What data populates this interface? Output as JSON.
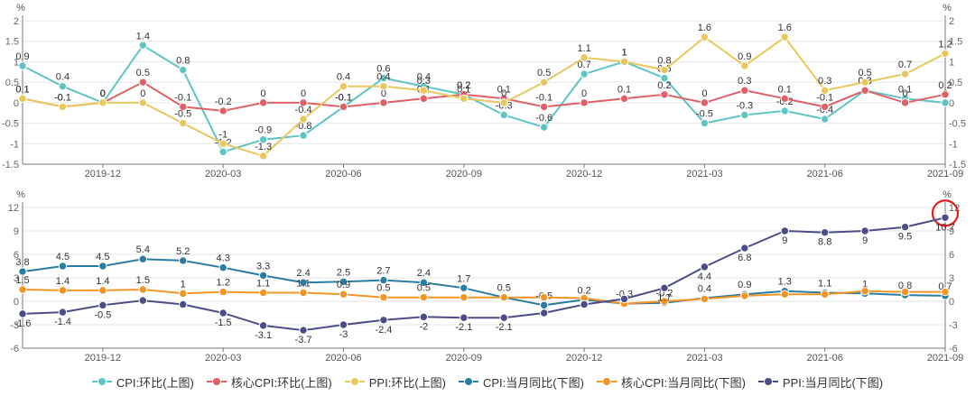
{
  "chart_data": [
    {
      "type": "line",
      "title": "",
      "ylabel": "%",
      "ylabel_right": "%",
      "ylim": [
        -1.5,
        2
      ],
      "yticks": [
        "2",
        "1.5",
        "1",
        "0.5",
        "0",
        "-0.5",
        "-1",
        "-1.5"
      ],
      "categories": [
        "2019-10",
        "2019-11",
        "2019-12",
        "2020-01",
        "2020-02",
        "2020-03",
        "2020-04",
        "2020-05",
        "2020-06",
        "2020-07",
        "2020-08",
        "2020-09",
        "2020-10",
        "2020-11",
        "2020-12",
        "2021-01",
        "2021-02",
        "2021-03",
        "2021-04",
        "2021-05",
        "2021-06",
        "2021-07",
        "2021-08",
        "2021-09"
      ],
      "xtick_labels": [
        "2019-12",
        "2020-03",
        "2020-06",
        "2020-09",
        "2020-12",
        "2021-03",
        "2021-06",
        "2021-09"
      ],
      "grid": true,
      "series": [
        {
          "name": "CPI:环比(上图)",
          "color": "#5fc4c4",
          "values": [
            0.9,
            0.4,
            0,
            1.4,
            0.8,
            -1.2,
            -0.9,
            -0.8,
            -0.1,
            0.6,
            0.4,
            0.2,
            -0.3,
            -0.6,
            0.7,
            1,
            0.6,
            -0.5,
            -0.3,
            -0.2,
            -0.4,
            0.3,
            0.1,
            0
          ],
          "labels": [
            "0.9",
            "0.4",
            "0",
            "1.4",
            "0.8",
            "-1.2",
            "-0.9",
            "-0.8",
            "-0.1",
            "0.6",
            "0.4",
            "0.2",
            "-0.3",
            "-0.6",
            "0.7",
            "1",
            "0.6",
            "-0.5",
            "-0.3",
            "-0.2",
            "-0.4",
            "0.3",
            "0.1",
            "0"
          ]
        },
        {
          "name": "核心CPI:环比(上图)",
          "color": "#e06066",
          "values": [
            0.1,
            -0.1,
            0,
            0.5,
            -0.1,
            -0.2,
            0,
            0,
            -0.1,
            0,
            0.1,
            0.2,
            0.1,
            -0.1,
            0,
            0.1,
            0.2,
            0,
            0.3,
            0.1,
            -0.1,
            0.3,
            0,
            0.2
          ],
          "labels": [
            "0.1",
            "-0.1",
            "0",
            "0.5",
            "-0.1",
            "-0.2",
            "0",
            "0",
            "-0.1",
            "0",
            "0.1",
            "0.2",
            "0.1",
            "-0.1",
            "0",
            "0.1",
            "0.2",
            "0",
            "0.3",
            "0.1",
            "-0.1",
            "0.3",
            "0",
            "0.2"
          ]
        },
        {
          "name": "PPI:环比(上图)",
          "color": "#e8c85c",
          "values": [
            0.1,
            -0.1,
            0,
            0,
            -0.5,
            -1,
            -1.3,
            -0.4,
            0.4,
            0.4,
            0.3,
            0.1,
            0,
            0.5,
            1.1,
            1,
            0.8,
            1.6,
            0.9,
            1.6,
            0.3,
            0.5,
            0.7,
            1.2
          ],
          "labels": [
            "0.1",
            "-0.1",
            "0",
            "0",
            "-0.5",
            "-1",
            "-1.3",
            "-0.4",
            "0.4",
            "0.4",
            "0.3",
            "0.1",
            "0",
            "0.5",
            "1.1",
            "1",
            "0.8",
            "1.6",
            "0.9",
            "1.6",
            "0.3",
            "0.5",
            "0.7",
            "1.2"
          ]
        }
      ]
    },
    {
      "type": "line",
      "title": "",
      "ylabel": "%",
      "ylabel_right": "%",
      "ylim": [
        -6,
        12
      ],
      "yticks": [
        "12",
        "9",
        "6",
        "3",
        "0",
        "-3",
        "-6"
      ],
      "categories": [
        "2019-10",
        "2019-11",
        "2019-12",
        "2020-01",
        "2020-02",
        "2020-03",
        "2020-04",
        "2020-05",
        "2020-06",
        "2020-07",
        "2020-08",
        "2020-09",
        "2020-10",
        "2020-11",
        "2020-12",
        "2021-01",
        "2021-02",
        "2021-03",
        "2021-04",
        "2021-05",
        "2021-06",
        "2021-07",
        "2021-08",
        "2021-09"
      ],
      "xtick_labels": [
        "2019-12",
        "2020-03",
        "2020-06",
        "2020-09",
        "2020-12",
        "2021-03",
        "2021-06",
        "2021-09"
      ],
      "grid": true,
      "highlight_last_point": "PPI:当月同比(下图)",
      "series": [
        {
          "name": "CPI:当月同比(下图)",
          "color": "#2a7ca3",
          "values": [
            3.8,
            4.5,
            4.5,
            5.4,
            5.2,
            4.3,
            3.3,
            2.4,
            2.5,
            2.7,
            2.4,
            1.7,
            0.5,
            -0.5,
            0.2,
            -0.3,
            -0.2,
            0.4,
            0.9,
            1.3,
            1.1,
            1,
            0.8,
            0.7
          ],
          "labels": [
            "3.8",
            "4.5",
            "4.5",
            "5.4",
            "5.2",
            "4.3",
            "3.3",
            "2.4",
            "2.5",
            "2.7",
            "2.4",
            "1.7",
            "0.5",
            "-0.5",
            "0.2",
            "-0.3",
            "-0.2",
            "0.4",
            "0.9",
            "1.3",
            "1.1",
            "1",
            "0.8",
            "0.7"
          ]
        },
        {
          "name": "核心CPI:当月同比(下图)",
          "color": "#f39424",
          "values": [
            1.5,
            1.4,
            1.4,
            1.5,
            1,
            1.2,
            1.1,
            1.1,
            0.9,
            0.5,
            0.5,
            0.5,
            0.5,
            0.5,
            0.4,
            -0.3,
            0,
            0.3,
            0.7,
            0.9,
            0.9,
            1.3,
            1.2,
            1.2
          ],
          "labels": [
            "1.5",
            "1.4",
            "1.4",
            "1.5",
            "1",
            "1.2",
            "1.1",
            "1.1",
            "0.9",
            "0.5",
            "0.5",
            "",
            "",
            "",
            "",
            "",
            "",
            "",
            "",
            "",
            "",
            "",
            "",
            ""
          ]
        },
        {
          "name": "PPI:当月同比(下图)",
          "color": "#4c4d87",
          "values": [
            -1.6,
            -1.4,
            -0.5,
            0.1,
            -0.4,
            -1.5,
            -3.1,
            -3.7,
            -3,
            -2.4,
            -2,
            -2.1,
            -2.1,
            -1.5,
            -0.4,
            0.3,
            1.7,
            4.4,
            6.8,
            9,
            8.8,
            9,
            9.5,
            10.7
          ],
          "labels": [
            "-1.6",
            "-1.4",
            "-0.5",
            "",
            "",
            "-1.5",
            "-3.1",
            "-3.7",
            "-3",
            "-2.4",
            "-2",
            "-2.1",
            "-2.1",
            "",
            "",
            "",
            "1.7",
            "4.4",
            "6.8",
            "9",
            "8.8",
            "9",
            "9.5",
            "10.7"
          ]
        }
      ]
    }
  ],
  "legend": [
    {
      "label": "CPI:环比(上图)",
      "color": "#5fc4c4"
    },
    {
      "label": "核心CPI:环比(上图)",
      "color": "#e06066"
    },
    {
      "label": "PPI:环比(上图)",
      "color": "#e8c85c"
    },
    {
      "label": "CPI:当月同比(下图)",
      "color": "#2a7ca3"
    },
    {
      "label": "核心CPI:当月同比(下图)",
      "color": "#f39424"
    },
    {
      "label": "PPI:当月同比(下图)",
      "color": "#4c4d87"
    }
  ]
}
